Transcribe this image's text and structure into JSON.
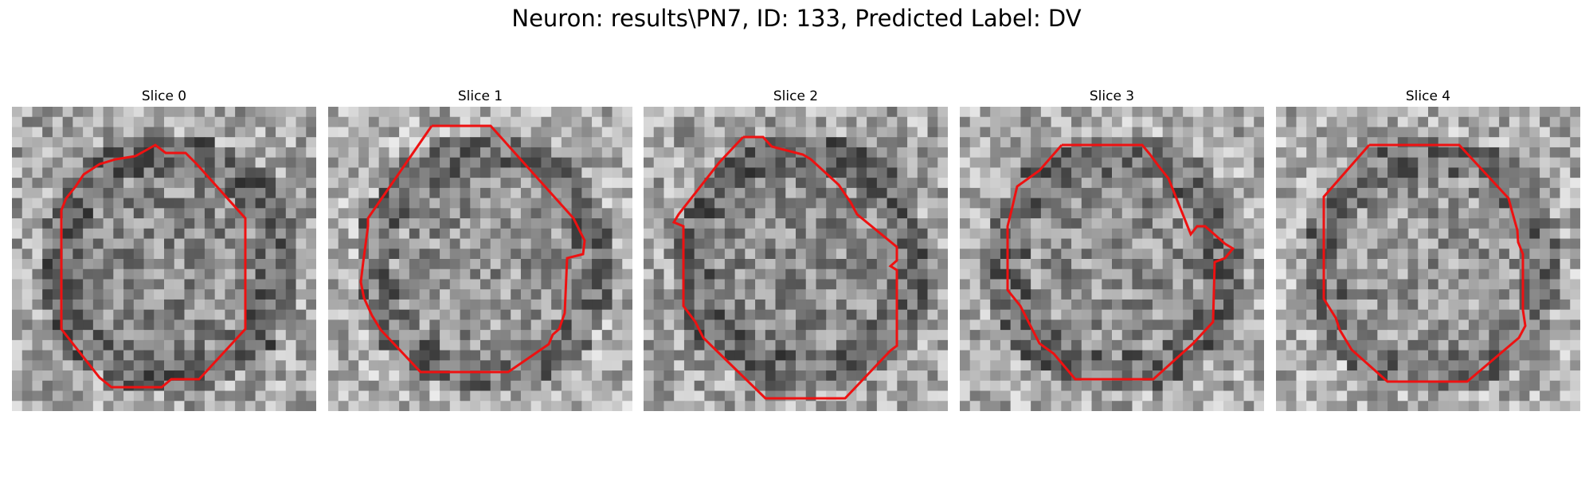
{
  "figure": {
    "title": "Neuron: results\\PN7, ID: 133, Predicted Label: DV"
  },
  "contour_color": "#ee1111",
  "panels": [
    {
      "title": "Slice 0",
      "seed": 11,
      "tone": 140
    },
    {
      "title": "Slice 1",
      "seed": 23,
      "tone": 150
    },
    {
      "title": "Slice 2",
      "seed": 37,
      "tone": 140
    },
    {
      "title": "Slice 3",
      "seed": 41,
      "tone": 145
    },
    {
      "title": "Slice 4",
      "seed": 59,
      "tone": 150
    }
  ]
}
